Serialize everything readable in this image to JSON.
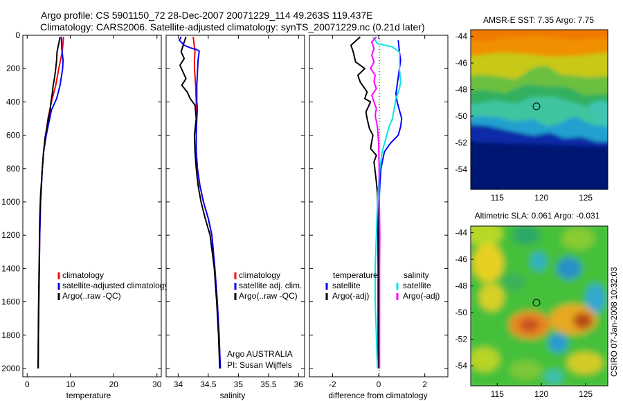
{
  "figure": {
    "title_line1": "Argo profile: CS 5901150_72 28-Dec-2007 20071229_114 49.263S 119.437E",
    "title_line2": "Climatology: CARS2006. Satellite-adjusted climatology: synTS_20071229.nc (0.21d later)",
    "credit_line1": "Argo AUSTRALIA",
    "credit_line2": "PI: Susan Wijffels",
    "timestamp": "CSIRO 07-Jan-2008 10:32:03"
  },
  "colors": {
    "climatology": "#ff0000",
    "satellite": "#0000ff",
    "argo": "#000000",
    "salinity_satellite": "#00e5e5",
    "salinity_argo": "#ff00ff"
  },
  "chart_data": [
    {
      "type": "line",
      "xlabel": "temperature",
      "ylabel": "",
      "xlim": [
        -1,
        31
      ],
      "ylim": [
        2050,
        0
      ],
      "xticks": [
        0,
        10,
        20,
        30
      ],
      "yticks": [
        0,
        200,
        400,
        600,
        800,
        1000,
        1200,
        1400,
        1600,
        1800,
        2000
      ],
      "legend": [
        "climatology",
        "satellite-adjusted climatology",
        "Argo(..raw -QC)"
      ],
      "legend_loc": "lower left",
      "series": [
        {
          "name": "climatology",
          "color": "#ff0000",
          "points": [
            [
              8.4,
              10
            ],
            [
              8.1,
              100
            ],
            [
              7.3,
              200
            ],
            [
              6.6,
              300
            ],
            [
              5.6,
              400
            ],
            [
              4.8,
              500
            ],
            [
              4.3,
              600
            ],
            [
              3.8,
              700
            ],
            [
              3.5,
              800
            ],
            [
              3.3,
              900
            ],
            [
              3.1,
              1000
            ],
            [
              2.9,
              1200
            ],
            [
              2.8,
              1400
            ],
            [
              2.7,
              1600
            ],
            [
              2.6,
              1800
            ],
            [
              2.55,
              2000
            ]
          ]
        },
        {
          "name": "satellite-adjusted climatology",
          "color": "#0000ff",
          "points": [
            [
              7.9,
              10
            ],
            [
              8.0,
              80
            ],
            [
              8.3,
              150
            ],
            [
              8.2,
              200
            ],
            [
              7.6,
              300
            ],
            [
              6.8,
              380
            ],
            [
              5.6,
              450
            ],
            [
              4.8,
              550
            ],
            [
              4.4,
              600
            ],
            [
              3.8,
              700
            ],
            [
              3.5,
              800
            ],
            [
              3.3,
              900
            ],
            [
              3.1,
              1000
            ],
            [
              2.9,
              1200
            ],
            [
              2.8,
              1400
            ],
            [
              2.7,
              1600
            ],
            [
              2.6,
              1800
            ],
            [
              2.55,
              2000
            ]
          ]
        },
        {
          "name": "Argo(..raw -QC)",
          "color": "#000000",
          "points": [
            [
              7.6,
              10
            ],
            [
              7.3,
              50
            ],
            [
              6.9,
              100
            ],
            [
              6.8,
              150
            ],
            [
              6.6,
              200
            ],
            [
              6.3,
              260
            ],
            [
              6.0,
              300
            ],
            [
              5.8,
              350
            ],
            [
              5.5,
              400
            ],
            [
              5.3,
              450
            ],
            [
              4.9,
              500
            ],
            [
              4.5,
              560
            ],
            [
              4.1,
              620
            ],
            [
              3.8,
              700
            ],
            [
              3.5,
              800
            ],
            [
              3.3,
              880
            ],
            [
              3.1,
              960
            ],
            [
              2.9,
              1100
            ],
            [
              2.8,
              1300
            ],
            [
              2.7,
              1500
            ],
            [
              2.6,
              1700
            ],
            [
              2.55,
              1900
            ],
            [
              2.5,
              2000
            ]
          ]
        }
      ]
    },
    {
      "type": "line",
      "xlabel": "salinity",
      "ylabel": "",
      "xlim": [
        33.8,
        36.1
      ],
      "ylim": [
        2050,
        0
      ],
      "xticks": [
        34,
        34.5,
        35,
        35.5,
        36
      ],
      "legend": [
        "climatology",
        "satellite adj. clim.",
        "Argo(..raw -QC)"
      ],
      "legend_loc": "lower right",
      "series": [
        {
          "name": "climatology",
          "color": "#ff0000",
          "points": [
            [
              34.25,
              10
            ],
            [
              34.28,
              100
            ],
            [
              34.27,
              150
            ],
            [
              34.27,
              200
            ],
            [
              34.29,
              300
            ],
            [
              34.3,
              400
            ],
            [
              34.3,
              500
            ],
            [
              34.3,
              600
            ],
            [
              34.3,
              700
            ],
            [
              34.32,
              800
            ],
            [
              34.36,
              900
            ],
            [
              34.42,
              1000
            ],
            [
              34.5,
              1100
            ],
            [
              34.56,
              1200
            ],
            [
              34.61,
              1400
            ],
            [
              34.65,
              1600
            ],
            [
              34.68,
              1800
            ],
            [
              34.7,
              2000
            ]
          ]
        },
        {
          "name": "satellite adj. clim.",
          "color": "#0000ff",
          "points": [
            [
              34.05,
              10
            ],
            [
              34.02,
              30
            ],
            [
              34.1,
              60
            ],
            [
              34.2,
              75
            ],
            [
              34.3,
              85
            ],
            [
              34.35,
              95
            ],
            [
              34.33,
              150
            ],
            [
              34.31,
              300
            ],
            [
              34.31,
              400
            ],
            [
              34.32,
              440
            ],
            [
              34.31,
              500
            ],
            [
              34.3,
              600
            ],
            [
              34.3,
              700
            ],
            [
              34.32,
              800
            ],
            [
              34.36,
              900
            ],
            [
              34.42,
              1000
            ],
            [
              34.5,
              1100
            ],
            [
              34.56,
              1200
            ],
            [
              34.61,
              1400
            ],
            [
              34.65,
              1600
            ],
            [
              34.68,
              1800
            ],
            [
              34.7,
              2000
            ]
          ]
        },
        {
          "name": "Argo(..raw -QC)",
          "color": "#000000",
          "points": [
            [
              34.13,
              10
            ],
            [
              34.1,
              40
            ],
            [
              34.05,
              100
            ],
            [
              34.1,
              140
            ],
            [
              34.03,
              180
            ],
            [
              34.08,
              220
            ],
            [
              34.13,
              260
            ],
            [
              34.06,
              300
            ],
            [
              34.15,
              340
            ],
            [
              34.2,
              380
            ],
            [
              34.28,
              420
            ],
            [
              34.3,
              500
            ],
            [
              34.27,
              600
            ],
            [
              34.28,
              700
            ],
            [
              34.3,
              800
            ],
            [
              34.33,
              900
            ],
            [
              34.38,
              1000
            ],
            [
              34.45,
              1100
            ],
            [
              34.53,
              1200
            ],
            [
              34.6,
              1400
            ],
            [
              34.64,
              1600
            ],
            [
              34.67,
              1800
            ],
            [
              34.69,
              2000
            ]
          ]
        }
      ]
    },
    {
      "type": "line",
      "xlabel": "difference from climatology",
      "ylabel": "",
      "xlim": [
        -3,
        3
      ],
      "ylim": [
        2050,
        0
      ],
      "xticks": [
        -2,
        0,
        2
      ],
      "legend_groups": [
        {
          "title": "temperature",
          "entries": [
            "satellite",
            "Argo(-adj)"
          ]
        },
        {
          "title": "salinity",
          "entries": [
            "satellite",
            "Argo(-adj)"
          ]
        }
      ],
      "legend_loc": "lower center",
      "series": [
        {
          "name": "temperature satellite",
          "color": "#0000ff",
          "points": [
            [
              0.85,
              30
            ],
            [
              0.9,
              100
            ],
            [
              0.95,
              150
            ],
            [
              0.9,
              200
            ],
            [
              0.8,
              300
            ],
            [
              0.75,
              350
            ],
            [
              0.8,
              400
            ],
            [
              0.9,
              450
            ],
            [
              1.0,
              500
            ],
            [
              0.95,
              550
            ],
            [
              0.85,
              600
            ],
            [
              0.5,
              650
            ],
            [
              0.25,
              700
            ],
            [
              0.1,
              800
            ],
            [
              0.05,
              900
            ],
            [
              0.02,
              1000
            ],
            [
              0.02,
              1200
            ],
            [
              0.02,
              1400
            ],
            [
              0.03,
              1600
            ],
            [
              0.02,
              1800
            ],
            [
              0.03,
              2000
            ]
          ]
        },
        {
          "name": "temperature Argo(-adj)",
          "color": "#000000",
          "points": [
            [
              -0.8,
              10
            ],
            [
              -1.2,
              60
            ],
            [
              -1.1,
              100
            ],
            [
              -1.0,
              160
            ],
            [
              -0.6,
              200
            ],
            [
              -0.9,
              240
            ],
            [
              -0.8,
              280
            ],
            [
              -0.5,
              340
            ],
            [
              -0.6,
              380
            ],
            [
              -0.35,
              400
            ],
            [
              -0.55,
              460
            ],
            [
              -0.5,
              500
            ],
            [
              -0.4,
              560
            ],
            [
              -0.25,
              600
            ],
            [
              -0.35,
              680
            ],
            [
              -0.1,
              720
            ],
            [
              -0.2,
              760
            ],
            [
              -0.15,
              820
            ],
            [
              -0.1,
              880
            ],
            [
              -0.05,
              950
            ],
            [
              -0.05,
              1000
            ],
            [
              -0.03,
              1200
            ],
            [
              -0.02,
              1400
            ],
            [
              -0.02,
              1600
            ],
            [
              -0.02,
              1800
            ],
            [
              -0.02,
              2000
            ]
          ]
        },
        {
          "name": "salinity satellite",
          "color": "#00e5e5",
          "points": [
            [
              -0.25,
              10
            ],
            [
              -0.05,
              50
            ],
            [
              0.6,
              70
            ],
            [
              0.9,
              100
            ],
            [
              0.9,
              200
            ],
            [
              0.95,
              280
            ],
            [
              0.9,
              320
            ],
            [
              0.75,
              380
            ],
            [
              0.7,
              420
            ],
            [
              0.6,
              500
            ],
            [
              0.45,
              550
            ],
            [
              0.35,
              600
            ],
            [
              0.25,
              650
            ],
            [
              0.15,
              700
            ],
            [
              0.05,
              800
            ],
            [
              0.0,
              900
            ],
            [
              -0.05,
              1000
            ],
            [
              -0.1,
              1200
            ],
            [
              -0.15,
              1400
            ],
            [
              -0.15,
              1600
            ],
            [
              -0.1,
              1800
            ],
            [
              -0.05,
              2000
            ]
          ]
        },
        {
          "name": "salinity Argo(-adj)",
          "color": "#ff00ff",
          "points": [
            [
              -0.1,
              10
            ],
            [
              -0.3,
              40
            ],
            [
              -0.2,
              80
            ],
            [
              -0.3,
              120
            ],
            [
              -0.2,
              160
            ],
            [
              -0.35,
              200
            ],
            [
              -0.15,
              240
            ],
            [
              -0.2,
              280
            ],
            [
              -0.1,
              320
            ],
            [
              -0.3,
              360
            ],
            [
              -0.2,
              400
            ],
            [
              -0.1,
              440
            ],
            [
              -0.15,
              480
            ],
            [
              -0.05,
              550
            ],
            [
              0.0,
              650
            ],
            [
              0.02,
              800
            ],
            [
              0.03,
              1000
            ],
            [
              0.05,
              1200
            ],
            [
              0.04,
              1400
            ],
            [
              0.04,
              1600
            ],
            [
              0.04,
              1800
            ],
            [
              0.04,
              2000
            ]
          ]
        }
      ]
    },
    {
      "type": "heatmap",
      "title": "AMSR-E SST: 7.35 Argo: 7.75",
      "xlim": [
        112,
        127.5
      ],
      "ylim": [
        -55.5,
        -43.5
      ],
      "xticks": [
        115,
        120,
        125
      ],
      "yticks": [
        -44,
        -46,
        -48,
        -50,
        -52,
        -54
      ],
      "marker": {
        "lon": 119.437,
        "lat": -49.263
      }
    },
    {
      "type": "heatmap",
      "title": "Altimetric SLA: 0.061 Argo: -0.031",
      "xlim": [
        112,
        127.5
      ],
      "ylim": [
        -55.5,
        -43.5
      ],
      "xticks": [
        115,
        120,
        125
      ],
      "yticks": [
        -44,
        -46,
        -48,
        -50,
        -52,
        -54
      ],
      "marker": {
        "lon": 119.437,
        "lat": -49.263
      }
    }
  ]
}
